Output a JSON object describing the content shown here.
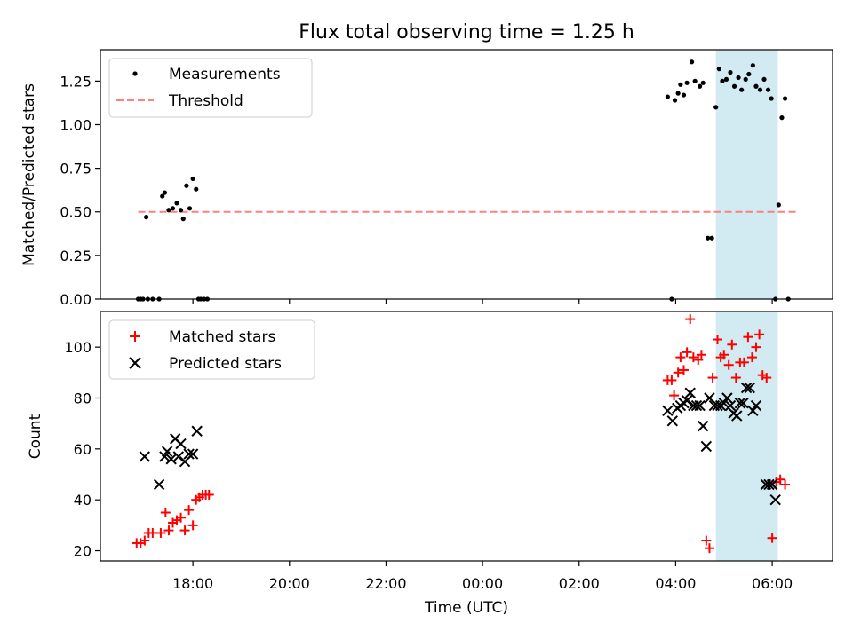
{
  "chart_data": [
    {
      "type": "scatter",
      "title": "Flux total observing time = 1.25 h",
      "xlabel": "",
      "ylabel": "Matched/Predicted stars",
      "ylim": [
        0,
        1.43
      ],
      "y_ticks": [
        "0.00",
        "0.25",
        "0.50",
        "0.75",
        "1.00",
        "1.25"
      ],
      "legend_position": "top-left",
      "highlight_interval": {
        "x_start": "04:50",
        "x_end": "06:07",
        "color": "#add8e6"
      },
      "series": [
        {
          "name": "Measurements",
          "marker": "dot",
          "color": "#000000",
          "points": [
            [
              "16:52",
              0.0
            ],
            [
              "16:55",
              0.0
            ],
            [
              "16:58",
              0.0
            ],
            [
              "17:02",
              0.47
            ],
            [
              "17:04",
              0.0
            ],
            [
              "17:10",
              0.0
            ],
            [
              "17:18",
              0.0
            ],
            [
              "17:22",
              0.59
            ],
            [
              "17:25",
              0.61
            ],
            [
              "17:30",
              0.51
            ],
            [
              "17:35",
              0.52
            ],
            [
              "17:40",
              0.55
            ],
            [
              "17:45",
              0.51
            ],
            [
              "17:48",
              0.46
            ],
            [
              "17:52",
              0.65
            ],
            [
              "17:56",
              0.52
            ],
            [
              "18:00",
              0.69
            ],
            [
              "18:04",
              0.63
            ],
            [
              "18:07",
              0.0
            ],
            [
              "18:10",
              0.0
            ],
            [
              "18:14",
              0.0
            ],
            [
              "18:18",
              0.0
            ],
            [
              "03:50",
              1.16
            ],
            [
              "03:55",
              0.0
            ],
            [
              "03:59",
              1.14
            ],
            [
              "04:03",
              1.18
            ],
            [
              "04:06",
              1.23
            ],
            [
              "04:10",
              1.17
            ],
            [
              "04:14",
              1.24
            ],
            [
              "04:20",
              1.36
            ],
            [
              "04:24",
              1.25
            ],
            [
              "04:30",
              1.22
            ],
            [
              "04:34",
              1.24
            ],
            [
              "04:40",
              0.35
            ],
            [
              "04:45",
              0.35
            ],
            [
              "04:50",
              1.1
            ],
            [
              "04:54",
              1.32
            ],
            [
              "04:58",
              1.25
            ],
            [
              "05:03",
              1.26
            ],
            [
              "05:08",
              1.3
            ],
            [
              "05:13",
              1.22
            ],
            [
              "05:18",
              1.27
            ],
            [
              "05:22",
              1.2
            ],
            [
              "05:27",
              1.26
            ],
            [
              "05:31",
              1.29
            ],
            [
              "05:36",
              1.34
            ],
            [
              "05:40",
              1.22
            ],
            [
              "05:45",
              1.2
            ],
            [
              "05:50",
              1.26
            ],
            [
              "05:55",
              1.2
            ],
            [
              "05:59",
              1.15
            ],
            [
              "06:04",
              0.0
            ],
            [
              "06:08",
              0.54
            ],
            [
              "06:12",
              1.04
            ],
            [
              "06:16",
              1.15
            ],
            [
              "06:20",
              0.0
            ]
          ]
        },
        {
          "name": "Threshold",
          "marker": "dashed-line",
          "color": "#ff7f7f",
          "points": [
            [
              "16:52",
              0.5
            ],
            [
              "06:32",
              0.5
            ]
          ]
        }
      ]
    },
    {
      "type": "scatter",
      "title": "",
      "xlabel": "Time (UTC)",
      "ylabel": "Count",
      "ylim": [
        16,
        114
      ],
      "y_ticks": [
        "20",
        "40",
        "60",
        "80",
        "100"
      ],
      "x_ticks": [
        "18:00",
        "20:00",
        "22:00",
        "00:00",
        "02:00",
        "04:00",
        "06:00"
      ],
      "xlim": [
        "16:05",
        "07:15"
      ],
      "legend_position": "top-left",
      "highlight_interval": {
        "x_start": "04:50",
        "x_end": "06:07",
        "color": "#add8e6"
      },
      "series": [
        {
          "name": "Matched stars",
          "marker": "plus",
          "color": "#ff0000",
          "points": [
            [
              "16:50",
              23
            ],
            [
              "16:55",
              23
            ],
            [
              "17:00",
              24
            ],
            [
              "17:05",
              27
            ],
            [
              "17:10",
              27
            ],
            [
              "17:20",
              27
            ],
            [
              "17:26",
              35
            ],
            [
              "17:30",
              28
            ],
            [
              "17:35",
              31
            ],
            [
              "17:40",
              32
            ],
            [
              "17:45",
              33
            ],
            [
              "17:50",
              28
            ],
            [
              "17:55",
              36
            ],
            [
              "18:00",
              30
            ],
            [
              "18:04",
              40
            ],
            [
              "18:08",
              41
            ],
            [
              "18:12",
              42
            ],
            [
              "18:16",
              42
            ],
            [
              "18:20",
              42
            ],
            [
              "03:50",
              87
            ],
            [
              "03:55",
              87
            ],
            [
              "03:58",
              81
            ],
            [
              "04:03",
              90
            ],
            [
              "04:06",
              96
            ],
            [
              "04:10",
              91
            ],
            [
              "04:14",
              98
            ],
            [
              "04:18",
              111
            ],
            [
              "04:22",
              96
            ],
            [
              "04:28",
              95
            ],
            [
              "04:32",
              97
            ],
            [
              "04:38",
              24
            ],
            [
              "04:42",
              21
            ],
            [
              "04:46",
              88
            ],
            [
              "04:52",
              103
            ],
            [
              "04:56",
              96
            ],
            [
              "05:00",
              97
            ],
            [
              "05:06",
              93
            ],
            [
              "05:10",
              101
            ],
            [
              "05:15",
              88
            ],
            [
              "05:20",
              94
            ],
            [
              "05:25",
              94
            ],
            [
              "05:30",
              104
            ],
            [
              "05:35",
              96
            ],
            [
              "05:40",
              100
            ],
            [
              "05:44",
              105
            ],
            [
              "05:48",
              89
            ],
            [
              "05:53",
              88
            ],
            [
              "06:00",
              25
            ],
            [
              "06:05",
              47
            ],
            [
              "06:10",
              48
            ],
            [
              "06:16",
              46
            ]
          ]
        },
        {
          "name": "Predicted stars",
          "marker": "x",
          "color": "#000000",
          "points": [
            [
              "17:00",
              57
            ],
            [
              "17:18",
              46
            ],
            [
              "17:25",
              57
            ],
            [
              "17:28",
              59
            ],
            [
              "17:33",
              56
            ],
            [
              "17:38",
              64
            ],
            [
              "17:42",
              57
            ],
            [
              "17:45",
              62
            ],
            [
              "17:50",
              55
            ],
            [
              "17:55",
              58
            ],
            [
              "18:00",
              58
            ],
            [
              "18:05",
              67
            ],
            [
              "03:50",
              75
            ],
            [
              "03:56",
              71
            ],
            [
              "04:02",
              76
            ],
            [
              "04:06",
              77
            ],
            [
              "04:10",
              78
            ],
            [
              "04:14",
              79
            ],
            [
              "04:18",
              82
            ],
            [
              "04:22",
              77
            ],
            [
              "04:26",
              77
            ],
            [
              "04:30",
              77
            ],
            [
              "04:34",
              69
            ],
            [
              "04:38",
              61
            ],
            [
              "04:42",
              80
            ],
            [
              "04:48",
              77
            ],
            [
              "04:52",
              77
            ],
            [
              "04:56",
              77
            ],
            [
              "05:00",
              78
            ],
            [
              "05:04",
              80
            ],
            [
              "05:08",
              77
            ],
            [
              "05:12",
              74
            ],
            [
              "05:16",
              73
            ],
            [
              "05:20",
              78
            ],
            [
              "05:24",
              78
            ],
            [
              "05:28",
              84
            ],
            [
              "05:32",
              84
            ],
            [
              "05:36",
              75
            ],
            [
              "05:40",
              77
            ],
            [
              "05:52",
              46
            ],
            [
              "05:56",
              46
            ],
            [
              "06:00",
              46
            ],
            [
              "06:04",
              40
            ]
          ]
        }
      ]
    }
  ]
}
